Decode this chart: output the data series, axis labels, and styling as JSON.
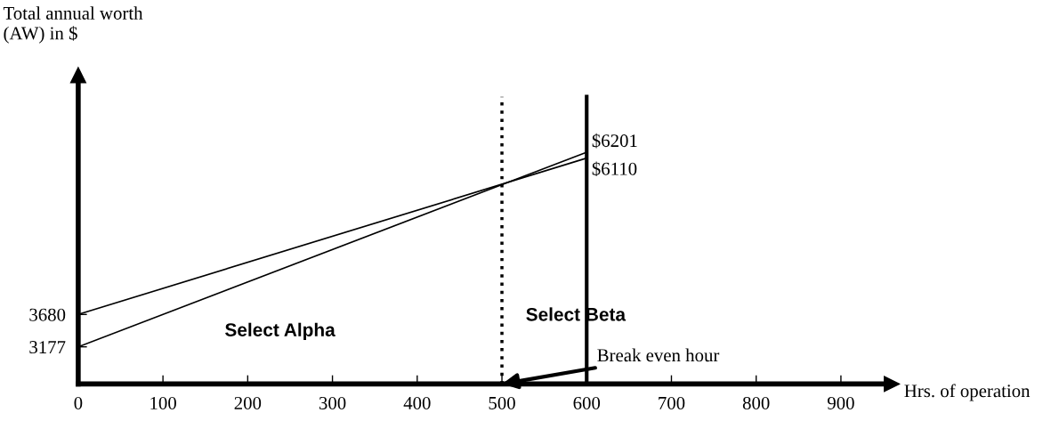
{
  "chart_data": {
    "type": "line",
    "xlabel": "Hrs. of operation",
    "ylabel": "Total annual worth\n(AW) in $",
    "x": [
      0,
      600
    ],
    "series": [
      {
        "color": "#000000",
        "values": [
          3680,
          6110
        ],
        "value_labels": [
          null,
          "$6110"
        ]
      },
      {
        "color": "#000000",
        "values": [
          3177,
          6201
        ],
        "value_labels": [
          null,
          "$6201"
        ]
      }
    ],
    "xlim": [
      0,
      960
    ],
    "xticks": [
      0,
      100,
      200,
      300,
      400,
      500,
      600,
      700,
      800,
      900
    ],
    "ylim": [
      2600,
      7400
    ],
    "yticks": [
      3177,
      3680
    ],
    "ref_lines": [
      {
        "axis": "x",
        "value": 500,
        "color": "#000000",
        "line_style": "dotted"
      },
      {
        "axis": "x",
        "value": 600,
        "color": "#000000",
        "line_style": "solid"
      }
    ],
    "annotations": [
      "Select Alpha",
      "Select Beta",
      {
        "text": "Break even hour",
        "x": 500,
        "y": 2600
      }
    ],
    "grid": false,
    "legend": false,
    "marker": "none",
    "line_style": "solid"
  }
}
